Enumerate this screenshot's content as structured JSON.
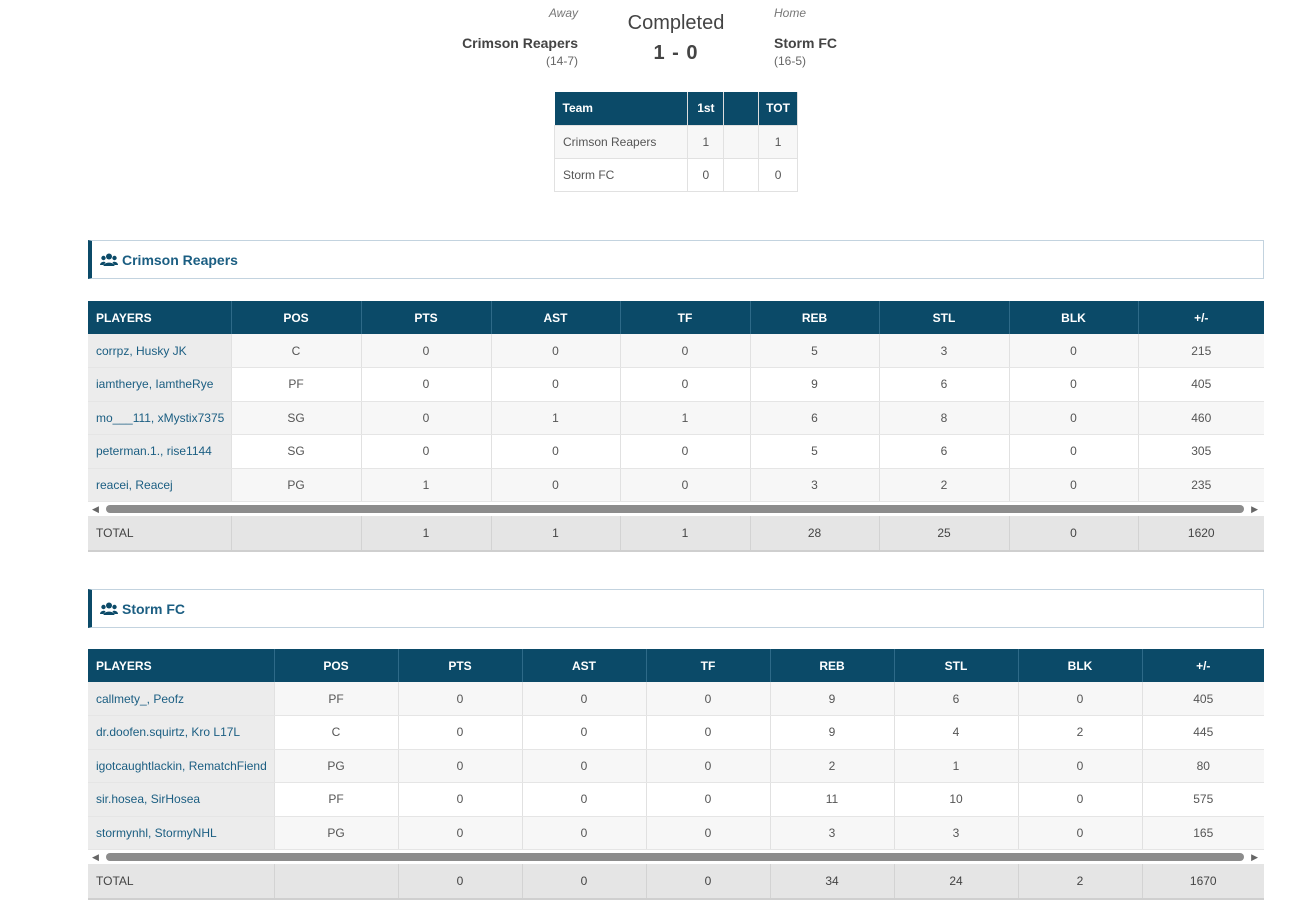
{
  "game": {
    "status": "Completed",
    "score": "1 - 0",
    "away": {
      "side": "Away",
      "name": "Crimson Reapers",
      "record": "(14-7)"
    },
    "home": {
      "side": "Home",
      "name": "Storm FC",
      "record": "(16-5)"
    }
  },
  "line_score": {
    "headers": [
      "Team",
      "1st",
      "",
      "TOT"
    ],
    "rows": [
      [
        "Crimson Reapers",
        "1",
        "",
        "1"
      ],
      [
        "Storm FC",
        "0",
        "",
        "0"
      ]
    ]
  },
  "icons": {
    "team_icon": "users-icon",
    "scroll_left": "caret-left-icon",
    "scroll_right": "caret-right-icon"
  },
  "colors": {
    "header_bg": "#0b4a68",
    "link": "#1b5e82",
    "total_bg": "#e5e5e5"
  },
  "teams": [
    {
      "name": "Crimson Reapers",
      "headers": [
        "PLAYERS",
        "POS",
        "PTS",
        "AST",
        "TF",
        "REB",
        "STL",
        "BLK",
        "+/-"
      ],
      "rows": [
        [
          "corrpz, Husky JK",
          "C",
          "0",
          "0",
          "0",
          "5",
          "3",
          "0",
          "215"
        ],
        [
          "iamtherye, IamtheRye",
          "PF",
          "0",
          "0",
          "0",
          "9",
          "6",
          "0",
          "405"
        ],
        [
          "mo___111, xMystix7375",
          "SG",
          "0",
          "1",
          "1",
          "6",
          "8",
          "0",
          "460"
        ],
        [
          "peterman.1., rise1144",
          "SG",
          "0",
          "0",
          "0",
          "5",
          "6",
          "0",
          "305"
        ],
        [
          "reacei, Reacej",
          "PG",
          "1",
          "0",
          "0",
          "3",
          "2",
          "0",
          "235"
        ]
      ],
      "total": [
        "TOTAL",
        "",
        "1",
        "1",
        "1",
        "28",
        "25",
        "0",
        "1620"
      ]
    },
    {
      "name": "Storm FC",
      "headers": [
        "PLAYERS",
        "POS",
        "PTS",
        "AST",
        "TF",
        "REB",
        "STL",
        "BLK",
        "+/-"
      ],
      "rows": [
        [
          "callmety_, Peofz",
          "PF",
          "0",
          "0",
          "0",
          "9",
          "6",
          "0",
          "405"
        ],
        [
          "dr.doofen.squirtz, Kro L17L",
          "C",
          "0",
          "0",
          "0",
          "9",
          "4",
          "2",
          "445"
        ],
        [
          "igotcaughtlackin, RematchFiend",
          "PG",
          "0",
          "0",
          "0",
          "2",
          "1",
          "0",
          "80"
        ],
        [
          "sir.hosea, SirHosea",
          "PF",
          "0",
          "0",
          "0",
          "11",
          "10",
          "0",
          "575"
        ],
        [
          "stormynhl, StormyNHL",
          "PG",
          "0",
          "0",
          "0",
          "3",
          "3",
          "0",
          "165"
        ]
      ],
      "total": [
        "TOTAL",
        "",
        "0",
        "0",
        "0",
        "34",
        "24",
        "2",
        "1670"
      ]
    }
  ]
}
